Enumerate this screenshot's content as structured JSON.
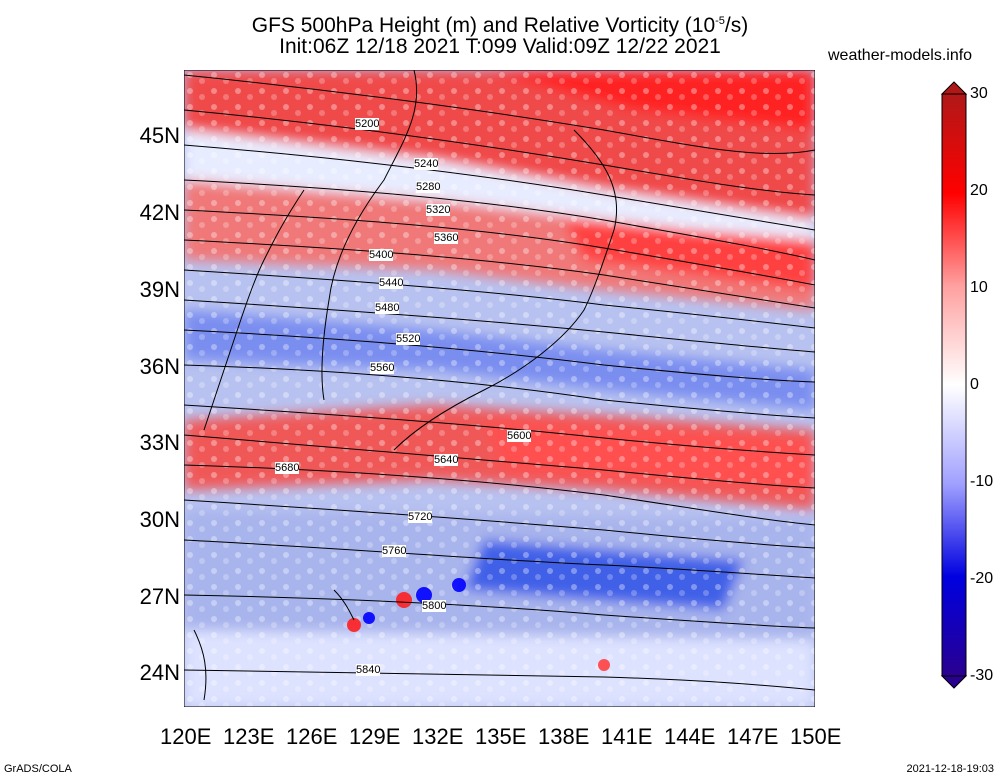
{
  "title": {
    "line1": "GFS 500hPa Height (m) and Relative Vorticity (10",
    "exp": "-5",
    "line1_end": "/s)",
    "line2": "Init:06Z 12/18 2021 T:099 Valid:09Z 12/22 2021"
  },
  "site": "weather-models.info",
  "lat_labels": [
    "45N",
    "42N",
    "39N",
    "36N",
    "33N",
    "30N",
    "27N",
    "24N"
  ],
  "lon_labels": [
    "120E",
    "123E",
    "126E",
    "129E",
    "132E",
    "135E",
    "138E",
    "141E",
    "144E",
    "147E",
    "150E"
  ],
  "colorbar": {
    "labels": [
      "30",
      "20",
      "10",
      "0",
      "-10",
      "-20",
      "-30"
    ],
    "colors": [
      "#b01818",
      "#ff0000",
      "#ffa0a0",
      "#ffffff",
      "#a0a0ff",
      "#0000e0",
      "#2a0090"
    ]
  },
  "contours": [
    "5200",
    "5240",
    "5280",
    "5320",
    "5360",
    "5400",
    "5440",
    "5480",
    "5520",
    "5560",
    "5600",
    "5640",
    "5680",
    "5720",
    "5760",
    "5800",
    "5840"
  ],
  "footer": {
    "left": "GrADS/COLA",
    "right": "2021-12-18-19:03"
  }
}
